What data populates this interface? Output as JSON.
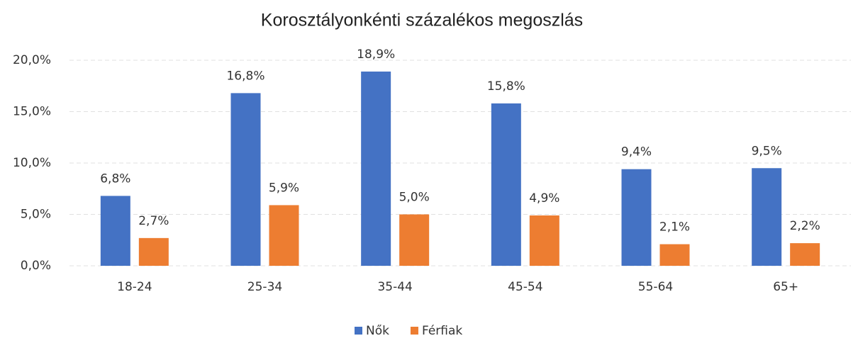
{
  "chart_data": {
    "type": "bar",
    "title": "Korosztályonkénti százalékos megoszlás",
    "categories": [
      "18-24",
      "25-34",
      "35-44",
      "45-54",
      "55-64",
      "65+"
    ],
    "series": [
      {
        "name": "Nők",
        "color": "#4472c4",
        "values": [
          6.8,
          16.8,
          18.9,
          15.8,
          9.4,
          9.5
        ],
        "value_labels": [
          "6,8%",
          "16,8%",
          "18,9%",
          "15,8%",
          "9,4%",
          "9,5%"
        ]
      },
      {
        "name": "Férfiak",
        "color": "#ed7d31",
        "values": [
          2.7,
          5.9,
          5.0,
          4.9,
          2.1,
          2.2
        ],
        "value_labels": [
          "2,7%",
          "5,9%",
          "5,0%",
          "4,9%",
          "2,1%",
          "2,2%"
        ]
      }
    ],
    "ylim": [
      0,
      20
    ],
    "yticks": [
      {
        "value": 0,
        "label": "0,0%"
      },
      {
        "value": 5,
        "label": "5,0%"
      },
      {
        "value": 10,
        "label": "10,0%"
      },
      {
        "value": 15,
        "label": "15,0%"
      },
      {
        "value": 20,
        "label": "20,0%"
      }
    ],
    "grid": true,
    "legend": "bottom"
  }
}
